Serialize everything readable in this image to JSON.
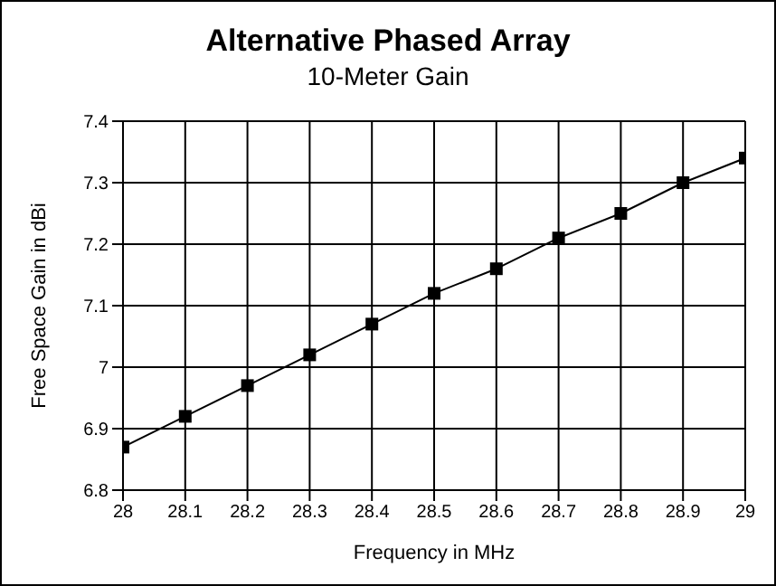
{
  "chart_data": {
    "type": "line",
    "title": "Alternative Phased Array",
    "subtitle": "10-Meter Gain",
    "xlabel": "Frequency in MHz",
    "ylabel": "Free Space Gain in dBi",
    "x": [
      28,
      28.1,
      28.2,
      28.3,
      28.4,
      28.5,
      28.6,
      28.7,
      28.8,
      28.9,
      29
    ],
    "series": [
      {
        "color": "#000000",
        "values": [
          6.87,
          6.92,
          6.97,
          7.02,
          7.07,
          7.12,
          7.16,
          7.21,
          7.25,
          7.3,
          7.34
        ]
      }
    ],
    "xlim": [
      28,
      29
    ],
    "xticks": [
      28,
      28.1,
      28.2,
      28.3,
      28.4,
      28.5,
      28.6,
      28.7,
      28.8,
      28.9,
      29
    ],
    "ylim": [
      6.8,
      7.4
    ],
    "yticks": [
      6.8,
      6.9,
      7,
      7.1,
      7.2,
      7.3,
      7.4
    ],
    "grid": true,
    "legend": false,
    "marker": "square",
    "line_style": "solid"
  }
}
